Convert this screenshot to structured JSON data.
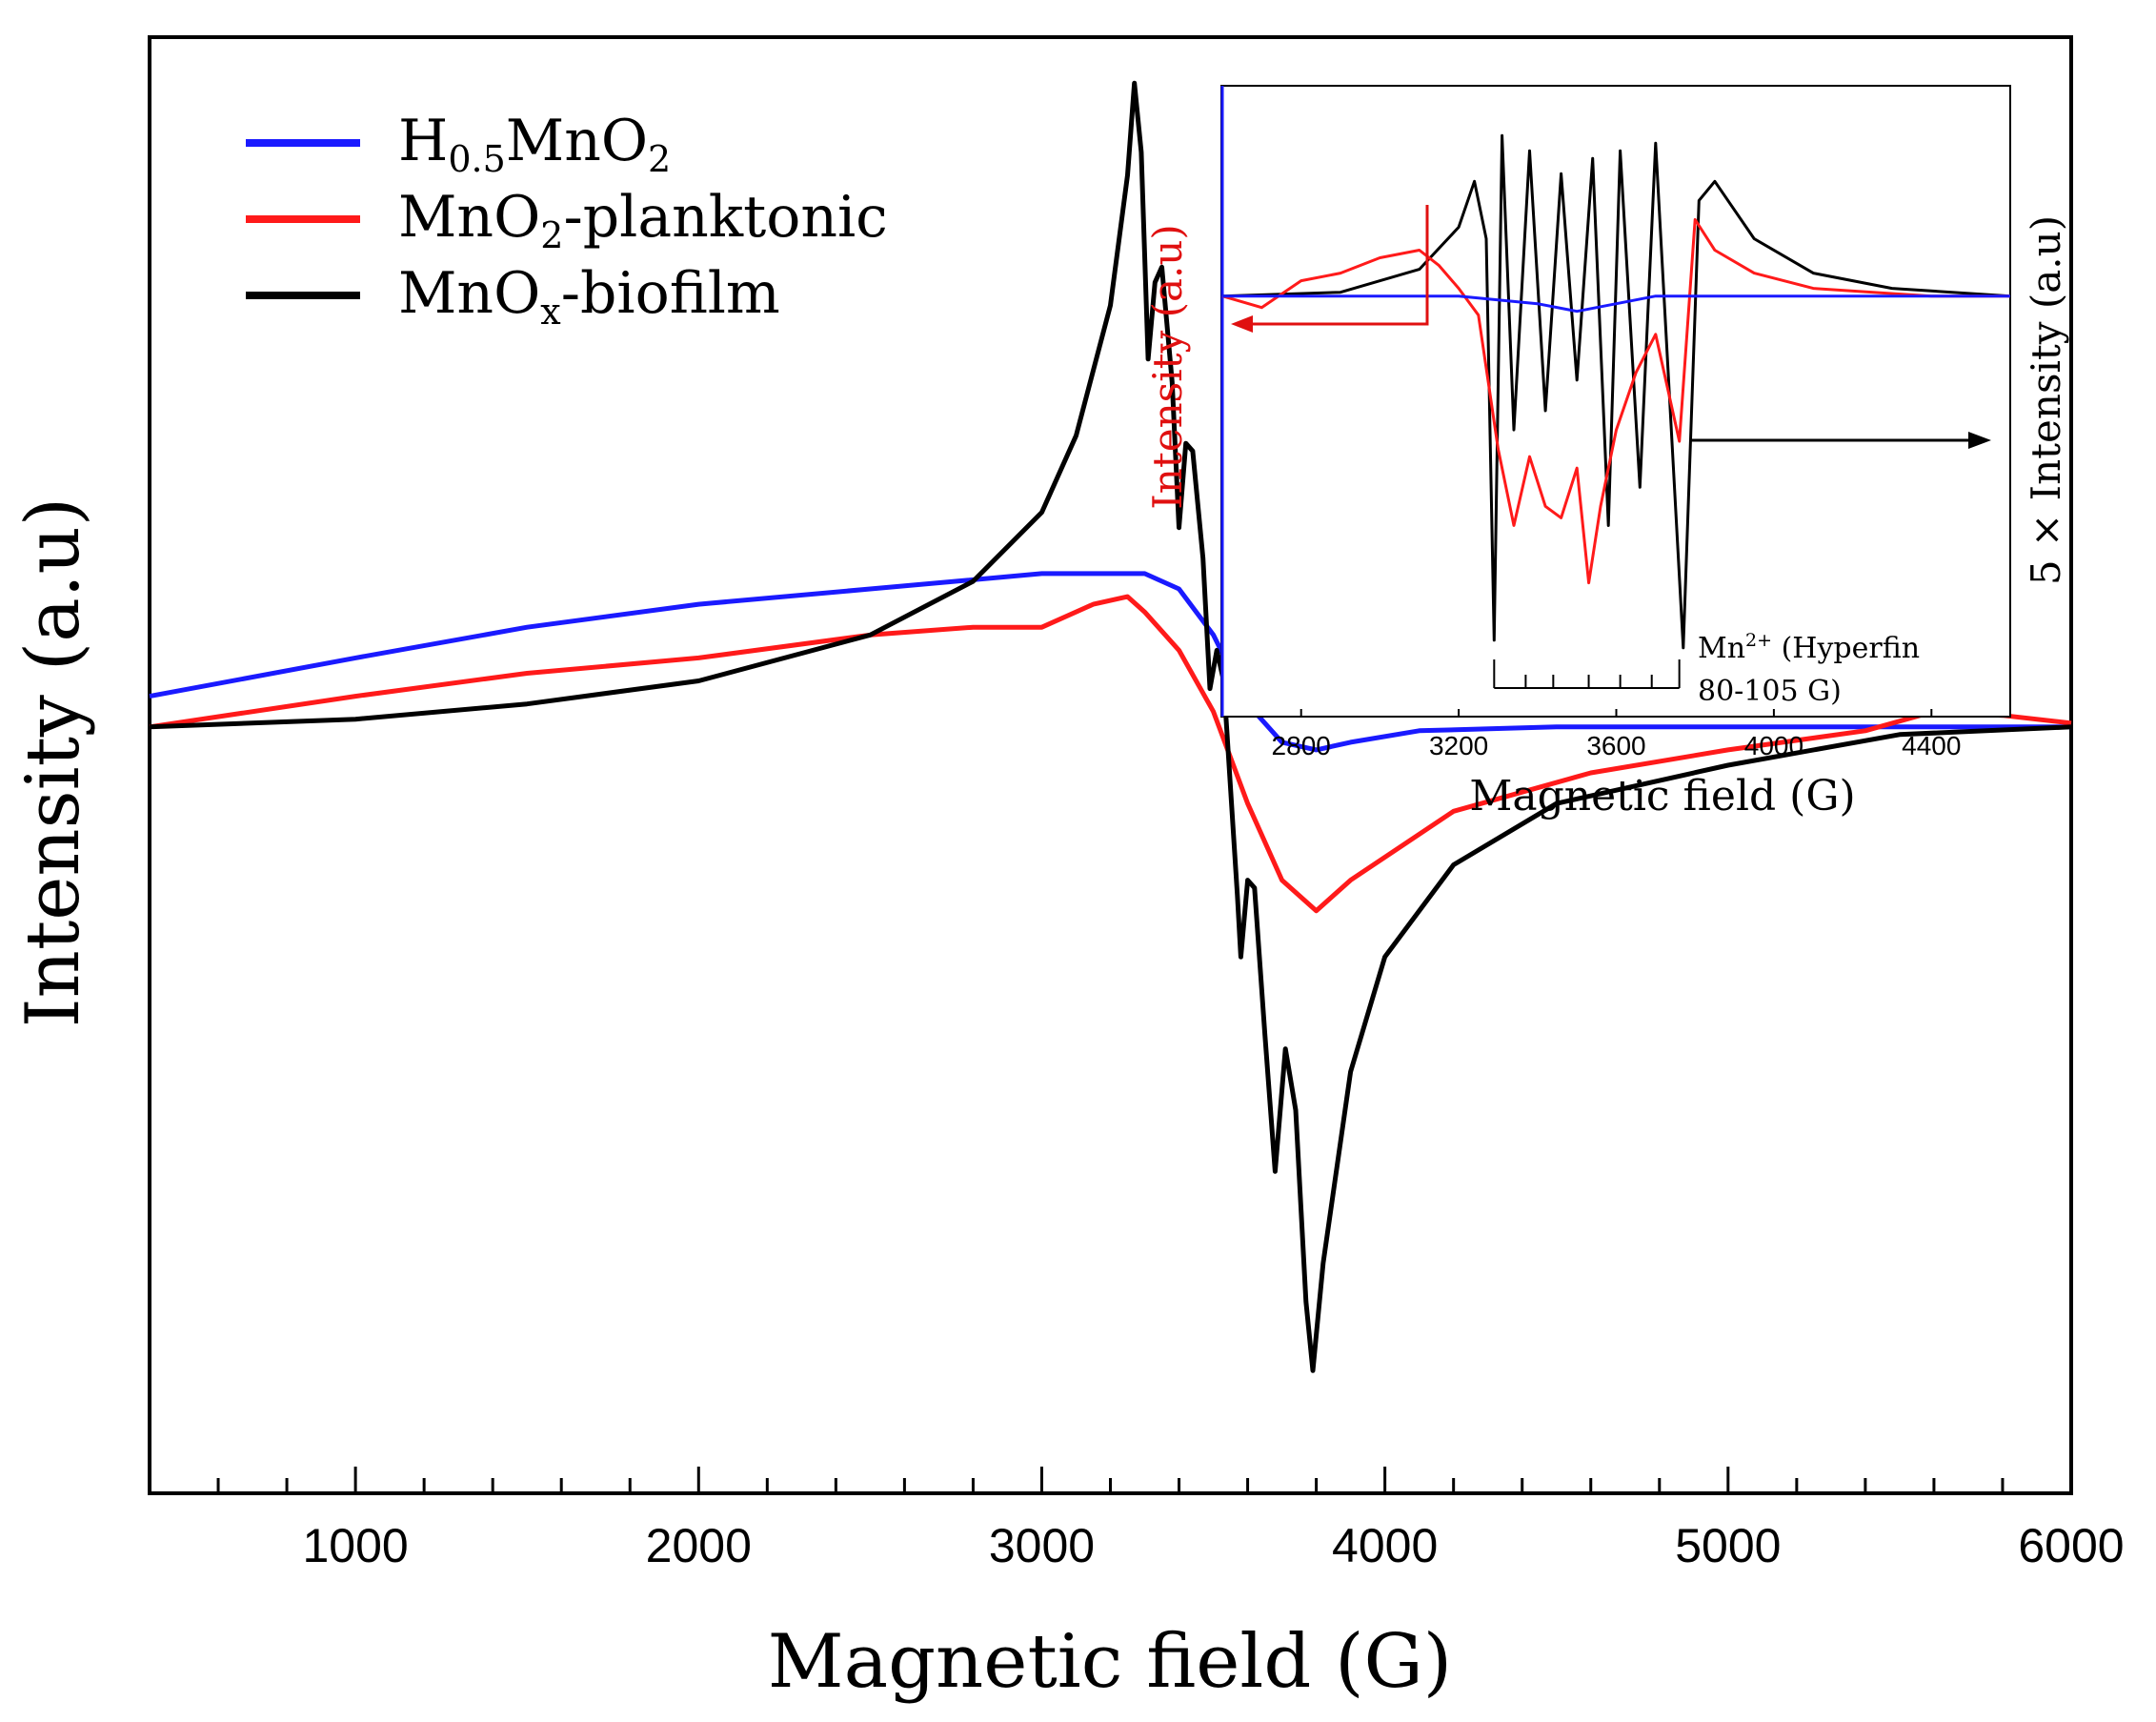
{
  "chart_data": [
    {
      "type": "line",
      "xlabel": "Magnetic field (G)",
      "ylabel": "Intensity (a.u)",
      "xlim": [
        400,
        6000
      ],
      "ylim": [
        -1.0,
        0.9
      ],
      "xticks": [
        1000,
        2000,
        3000,
        4000,
        5000,
        6000
      ],
      "xminor": [
        600,
        800,
        1200,
        1400,
        1600,
        1800,
        2200,
        2400,
        2600,
        2800,
        3200,
        3400,
        3600,
        3800,
        4200,
        4400,
        4600,
        4800,
        5200,
        5400,
        5600,
        5800
      ],
      "xtick_labels": [
        "1000",
        "2000",
        "3000",
        "4000",
        "5000",
        "6000"
      ],
      "legend_placement": "top-left",
      "series": [
        {
          "name": "H0.5MnO2",
          "name_main": "H",
          "name_sub1": "0.5",
          "name_mid": "MnO",
          "name_sub2": "2",
          "name_tail": "",
          "color": "#1a1aff",
          "points": [
            [
              400,
              0.04
            ],
            [
              1000,
              0.09
            ],
            [
              1500,
              0.13
            ],
            [
              2000,
              0.16
            ],
            [
              2500,
              0.18
            ],
            [
              3000,
              0.2
            ],
            [
              3300,
              0.2
            ],
            [
              3400,
              0.18
            ],
            [
              3500,
              0.12
            ],
            [
              3600,
              0.03
            ],
            [
              3700,
              -0.02
            ],
            [
              3800,
              -0.03
            ],
            [
              3900,
              -0.02
            ],
            [
              4100,
              -0.005
            ],
            [
              4500,
              0.0
            ],
            [
              5000,
              0.0
            ],
            [
              6000,
              0.0
            ]
          ]
        },
        {
          "name": "MnO2-planktonic",
          "name_main": "MnO",
          "name_sub1": "2",
          "name_mid": "-planktonic",
          "name_sub2": "",
          "name_tail": "",
          "color": "#ff1a1a",
          "points": [
            [
              400,
              0.0
            ],
            [
              1000,
              0.04
            ],
            [
              1500,
              0.07
            ],
            [
              2000,
              0.09
            ],
            [
              2500,
              0.12
            ],
            [
              2800,
              0.13
            ],
            [
              3000,
              0.13
            ],
            [
              3150,
              0.16
            ],
            [
              3250,
              0.17
            ],
            [
              3300,
              0.15
            ],
            [
              3400,
              0.1
            ],
            [
              3500,
              0.02
            ],
            [
              3600,
              -0.1
            ],
            [
              3700,
              -0.2
            ],
            [
              3800,
              -0.24
            ],
            [
              3900,
              -0.2
            ],
            [
              4200,
              -0.11
            ],
            [
              4600,
              -0.06
            ],
            [
              5000,
              -0.03
            ],
            [
              5400,
              -0.005
            ],
            [
              5600,
              0.02
            ],
            [
              5800,
              0.015
            ],
            [
              6000,
              0.005
            ]
          ]
        },
        {
          "name": "MnOx-biofilm",
          "name_main": "MnO",
          "name_sub1": "x",
          "name_mid": "-biofilm",
          "name_sub2": "",
          "name_tail": "",
          "color": "#000000",
          "points": [
            [
              400,
              0.0
            ],
            [
              1000,
              0.01
            ],
            [
              1500,
              0.03
            ],
            [
              2000,
              0.06
            ],
            [
              2500,
              0.12
            ],
            [
              2800,
              0.19
            ],
            [
              3000,
              0.28
            ],
            [
              3100,
              0.38
            ],
            [
              3200,
              0.55
            ],
            [
              3250,
              0.72
            ],
            [
              3270,
              0.84
            ],
            [
              3290,
              0.75
            ],
            [
              3310,
              0.48
            ],
            [
              3330,
              0.58
            ],
            [
              3350,
              0.6
            ],
            [
              3380,
              0.45
            ],
            [
              3400,
              0.26
            ],
            [
              3420,
              0.37
            ],
            [
              3440,
              0.36
            ],
            [
              3470,
              0.22
            ],
            [
              3490,
              0.05
            ],
            [
              3510,
              0.1
            ],
            [
              3530,
              0.06
            ],
            [
              3570,
              -0.22
            ],
            [
              3580,
              -0.3
            ],
            [
              3600,
              -0.2
            ],
            [
              3620,
              -0.21
            ],
            [
              3650,
              -0.4
            ],
            [
              3680,
              -0.58
            ],
            [
              3710,
              -0.42
            ],
            [
              3740,
              -0.5
            ],
            [
              3770,
              -0.75
            ],
            [
              3790,
              -0.84
            ],
            [
              3820,
              -0.7
            ],
            [
              3900,
              -0.45
            ],
            [
              4000,
              -0.3
            ],
            [
              4200,
              -0.18
            ],
            [
              4500,
              -0.1
            ],
            [
              5000,
              -0.05
            ],
            [
              5500,
              -0.01
            ],
            [
              6000,
              0.0
            ]
          ]
        }
      ]
    },
    {
      "type": "line",
      "xlabel": "Magnetic field (G)",
      "ylabel_left": "Intensity (a.u)",
      "ylabel_right": "5 × Intensity (a.u)",
      "xlim": [
        2600,
        4600
      ],
      "ylim": [
        -1.1,
        0.55
      ],
      "xticks": [
        2800,
        3200,
        3600,
        4000,
        4400
      ],
      "xtick_labels": [
        "2800",
        "3200",
        "3600",
        "4000",
        "4400"
      ],
      "annotation_line1": "Mn",
      "annotation_sup": "2+",
      "annotation_line1b": " (Hyperfin",
      "annotation_line2": "80-105 G)",
      "hyperfine_lines": [
        3290,
        3370,
        3440,
        3530,
        3610,
        3690,
        3760
      ],
      "series": [
        {
          "name": "MnOx-biofilm (inset)",
          "color": "#000000",
          "points": [
            [
              2600,
              0.0
            ],
            [
              2900,
              0.01
            ],
            [
              3100,
              0.07
            ],
            [
              3200,
              0.18
            ],
            [
              3240,
              0.3
            ],
            [
              3270,
              0.15
            ],
            [
              3290,
              -0.9
            ],
            [
              3310,
              0.42
            ],
            [
              3340,
              -0.35
            ],
            [
              3380,
              0.38
            ],
            [
              3420,
              -0.3
            ],
            [
              3460,
              0.32
            ],
            [
              3500,
              -0.22
            ],
            [
              3540,
              0.36
            ],
            [
              3580,
              -0.6
            ],
            [
              3610,
              0.38
            ],
            [
              3660,
              -0.5
            ],
            [
              3700,
              0.4
            ],
            [
              3770,
              -0.92
            ],
            [
              3810,
              0.25
            ],
            [
              3850,
              0.3
            ],
            [
              3950,
              0.15
            ],
            [
              4100,
              0.06
            ],
            [
              4300,
              0.02
            ],
            [
              4600,
              0.0
            ]
          ]
        },
        {
          "name": "MnO2-planktonic (inset)",
          "color": "#ff1a1a",
          "points": [
            [
              2600,
              0.0
            ],
            [
              2700,
              -0.03
            ],
            [
              2800,
              0.04
            ],
            [
              2900,
              0.06
            ],
            [
              3000,
              0.1
            ],
            [
              3100,
              0.12
            ],
            [
              3150,
              0.08
            ],
            [
              3200,
              0.02
            ],
            [
              3250,
              -0.05
            ],
            [
              3300,
              -0.4
            ],
            [
              3340,
              -0.6
            ],
            [
              3380,
              -0.42
            ],
            [
              3420,
              -0.55
            ],
            [
              3460,
              -0.58
            ],
            [
              3500,
              -0.45
            ],
            [
              3530,
              -0.75
            ],
            [
              3560,
              -0.55
            ],
            [
              3600,
              -0.35
            ],
            [
              3650,
              -0.2
            ],
            [
              3700,
              -0.1
            ],
            [
              3760,
              -0.38
            ],
            [
              3800,
              0.2
            ],
            [
              3850,
              0.12
            ],
            [
              3950,
              0.06
            ],
            [
              4100,
              0.02
            ],
            [
              4400,
              0.0
            ],
            [
              4600,
              0.0
            ]
          ]
        },
        {
          "name": "H0.5MnO2 (inset)",
          "color": "#1a1aff",
          "points": [
            [
              2600,
              0.0
            ],
            [
              3200,
              0.0
            ],
            [
              3400,
              -0.02
            ],
            [
              3500,
              -0.04
            ],
            [
              3600,
              -0.02
            ],
            [
              3700,
              0.0
            ],
            [
              4600,
              0.0
            ]
          ]
        }
      ]
    }
  ]
}
